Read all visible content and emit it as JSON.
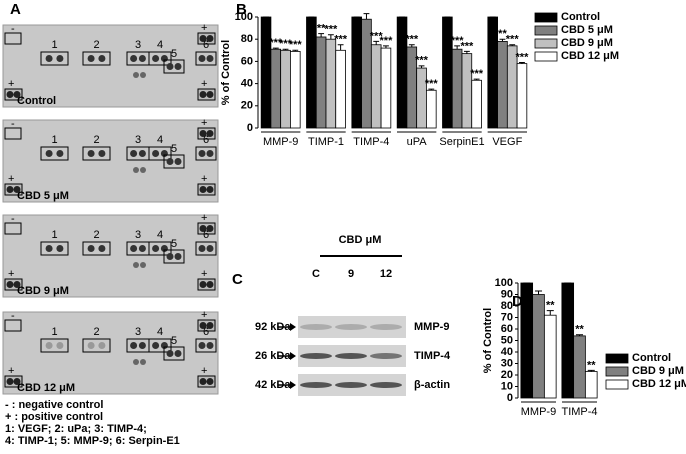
{
  "panel_a": {
    "label": "A",
    "neg": "-",
    "pos": "+",
    "spot_labels": [
      "1",
      "2",
      "3",
      "4",
      "5",
      "6"
    ],
    "arrays": [
      "Control",
      "CBD 5 μM",
      "CBD 9 μM",
      "CBD 12 μM"
    ],
    "legend": [
      "- : negative control",
      "+ : positive control",
      "1: VEGF; 2: uPa; 3: TIMP-4;",
      "4: TIMP-1; 5: MMP-9; 6: Serpin-E1"
    ]
  },
  "panel_c": {
    "label": "C",
    "header": "CBD μM",
    "lanes": [
      "C",
      "9",
      "12"
    ],
    "rows": [
      {
        "size": "92 kDa",
        "protein": "MMP-9"
      },
      {
        "size": "26 kDa",
        "protein": "TIMP-4"
      },
      {
        "size": "42 kDa",
        "protein": "β-actin"
      }
    ]
  },
  "chart_data": [
    {
      "type": "bar",
      "panel_label": "B",
      "ylabel": "% of Control",
      "categories": [
        "MMP-9",
        "TIMP-1",
        "TIMP-4",
        "uPA",
        "SerpinE1",
        "VEGF"
      ],
      "series": [
        {
          "name": "Control",
          "color": "#000000",
          "values": [
            100,
            100,
            100,
            100,
            100,
            100
          ],
          "errors": [
            0,
            0,
            0,
            0,
            0,
            0
          ],
          "significance": [
            null,
            null,
            null,
            null,
            null,
            null
          ]
        },
        {
          "name": "CBD 5 μM",
          "color": "#808080",
          "values": [
            71,
            82,
            98,
            73,
            71,
            78
          ],
          "errors": [
            1,
            3,
            5,
            2,
            3,
            2
          ],
          "significance": [
            "***",
            "**",
            null,
            "***",
            "***",
            "**"
          ]
        },
        {
          "name": "CBD 9 μM",
          "color": "#c0c0c0",
          "values": [
            70,
            80,
            75,
            54,
            67,
            74
          ],
          "errors": [
            1,
            4,
            3,
            2,
            2,
            1
          ],
          "significance": [
            "***",
            "***",
            "***",
            "***",
            "***",
            "***"
          ]
        },
        {
          "name": "CBD 12 μM",
          "color": "#ffffff",
          "values": [
            69,
            70,
            72,
            34,
            43,
            58
          ],
          "errors": [
            1,
            5,
            2,
            1,
            1,
            1
          ],
          "significance": [
            "***",
            "***",
            "***",
            "***",
            "***",
            "***"
          ]
        }
      ],
      "ylim": [
        0,
        100
      ],
      "yticks": [
        0,
        20,
        40,
        60,
        80,
        100
      ]
    },
    {
      "type": "bar",
      "panel_label": "D",
      "ylabel": "% of Control",
      "categories": [
        "MMP-9",
        "TIMP-4"
      ],
      "series": [
        {
          "name": "Control",
          "color": "#000000",
          "values": [
            100,
            100
          ],
          "errors": [
            0,
            0
          ],
          "significance": [
            null,
            null
          ]
        },
        {
          "name": "CBD 9 μM",
          "color": "#808080",
          "values": [
            90,
            54
          ],
          "errors": [
            3,
            1
          ],
          "significance": [
            null,
            "**"
          ]
        },
        {
          "name": "CBD 12 μM",
          "color": "#ffffff",
          "values": [
            72,
            23
          ],
          "errors": [
            4,
            1
          ],
          "significance": [
            "**",
            "**"
          ]
        }
      ],
      "ylim": [
        0,
        100
      ],
      "yticks": [
        0,
        10,
        20,
        30,
        40,
        50,
        60,
        70,
        80,
        90,
        100
      ]
    }
  ]
}
